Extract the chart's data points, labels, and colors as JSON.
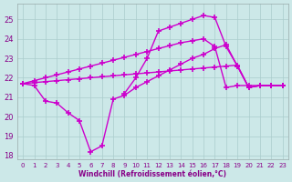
{
  "background_color": "#cce8e8",
  "grid_color": "#aacccc",
  "line_color": "#cc00cc",
  "xlabel": "Windchill (Refroidissement éolien,°C)",
  "xlim": [
    -0.5,
    23.5
  ],
  "ylim": [
    17.8,
    25.8
  ],
  "yticks": [
    18,
    19,
    20,
    21,
    22,
    23,
    24,
    25
  ],
  "xticks": [
    0,
    1,
    2,
    3,
    4,
    5,
    6,
    7,
    8,
    9,
    10,
    11,
    12,
    13,
    14,
    15,
    16,
    17,
    18,
    19,
    20,
    21,
    22,
    23
  ],
  "line_dip_x": [
    0,
    1,
    2,
    3,
    4,
    5,
    6,
    7,
    8,
    9,
    10,
    11,
    12,
    13,
    14,
    15,
    16,
    17,
    18,
    19,
    20,
    21,
    22,
    23
  ],
  "line_dip_y": [
    21.7,
    21.6,
    20.8,
    20.7,
    20.2,
    19.8,
    18.2,
    18.5,
    20.9,
    21.1,
    21.5,
    21.8,
    22.1,
    22.4,
    22.7,
    23.0,
    23.2,
    23.5,
    23.7,
    22.6,
    21.5,
    21.6,
    21.6,
    21.6
  ],
  "line_top_x": [
    9,
    10,
    11,
    12,
    13,
    14,
    15,
    16,
    17,
    18,
    19,
    20,
    21,
    22,
    23
  ],
  "line_top_y": [
    21.2,
    22.0,
    23.0,
    24.4,
    24.6,
    24.8,
    25.0,
    25.2,
    25.1,
    23.6,
    22.6,
    21.5,
    21.6,
    21.6,
    21.6
  ],
  "line_diag1_x": [
    0,
    1,
    2,
    3,
    4,
    5,
    6,
    7,
    8,
    9,
    10,
    11,
    12,
    13,
    14,
    15,
    16,
    17,
    18,
    19,
    20,
    21,
    22,
    23
  ],
  "line_diag1_y": [
    21.7,
    21.85,
    22.0,
    22.15,
    22.3,
    22.45,
    22.6,
    22.75,
    22.9,
    23.05,
    23.2,
    23.35,
    23.5,
    23.65,
    23.8,
    23.9,
    24.0,
    23.6,
    21.5,
    21.6,
    21.6,
    21.6,
    21.6,
    21.6
  ],
  "line_diag2_x": [
    0,
    1,
    2,
    3,
    4,
    5,
    6,
    7,
    8,
    9,
    10,
    11,
    12,
    13,
    14,
    15,
    16,
    17,
    18,
    19,
    20,
    21,
    22,
    23
  ],
  "line_diag2_y": [
    21.7,
    21.75,
    21.8,
    21.85,
    21.9,
    21.95,
    22.0,
    22.05,
    22.1,
    22.15,
    22.2,
    22.25,
    22.3,
    22.35,
    22.4,
    22.45,
    22.5,
    22.55,
    22.6,
    22.65,
    21.5,
    21.6,
    21.6,
    21.6
  ]
}
